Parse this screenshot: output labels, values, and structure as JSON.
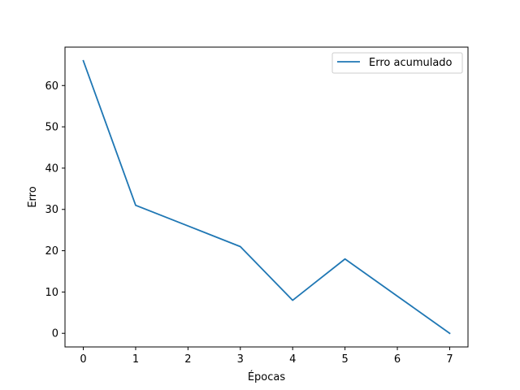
{
  "chart_data": {
    "type": "line",
    "xlabel": "Épocas",
    "ylabel": "Erro",
    "xlim": [
      -0.35,
      7.35
    ],
    "ylim": [
      -3.3,
      69.3
    ],
    "x_ticks": [
      0,
      1,
      2,
      3,
      4,
      5,
      6,
      7
    ],
    "y_ticks": [
      0,
      10,
      20,
      30,
      40,
      50,
      60
    ],
    "grid": false,
    "legend_position": "top-right",
    "series": [
      {
        "name": "Erro acumulado",
        "color": "#1f77b4",
        "x": [
          0,
          1,
          2,
          3,
          4,
          5,
          6,
          7
        ],
        "y": [
          66,
          31,
          26,
          21,
          8,
          18,
          9,
          0
        ]
      }
    ]
  }
}
